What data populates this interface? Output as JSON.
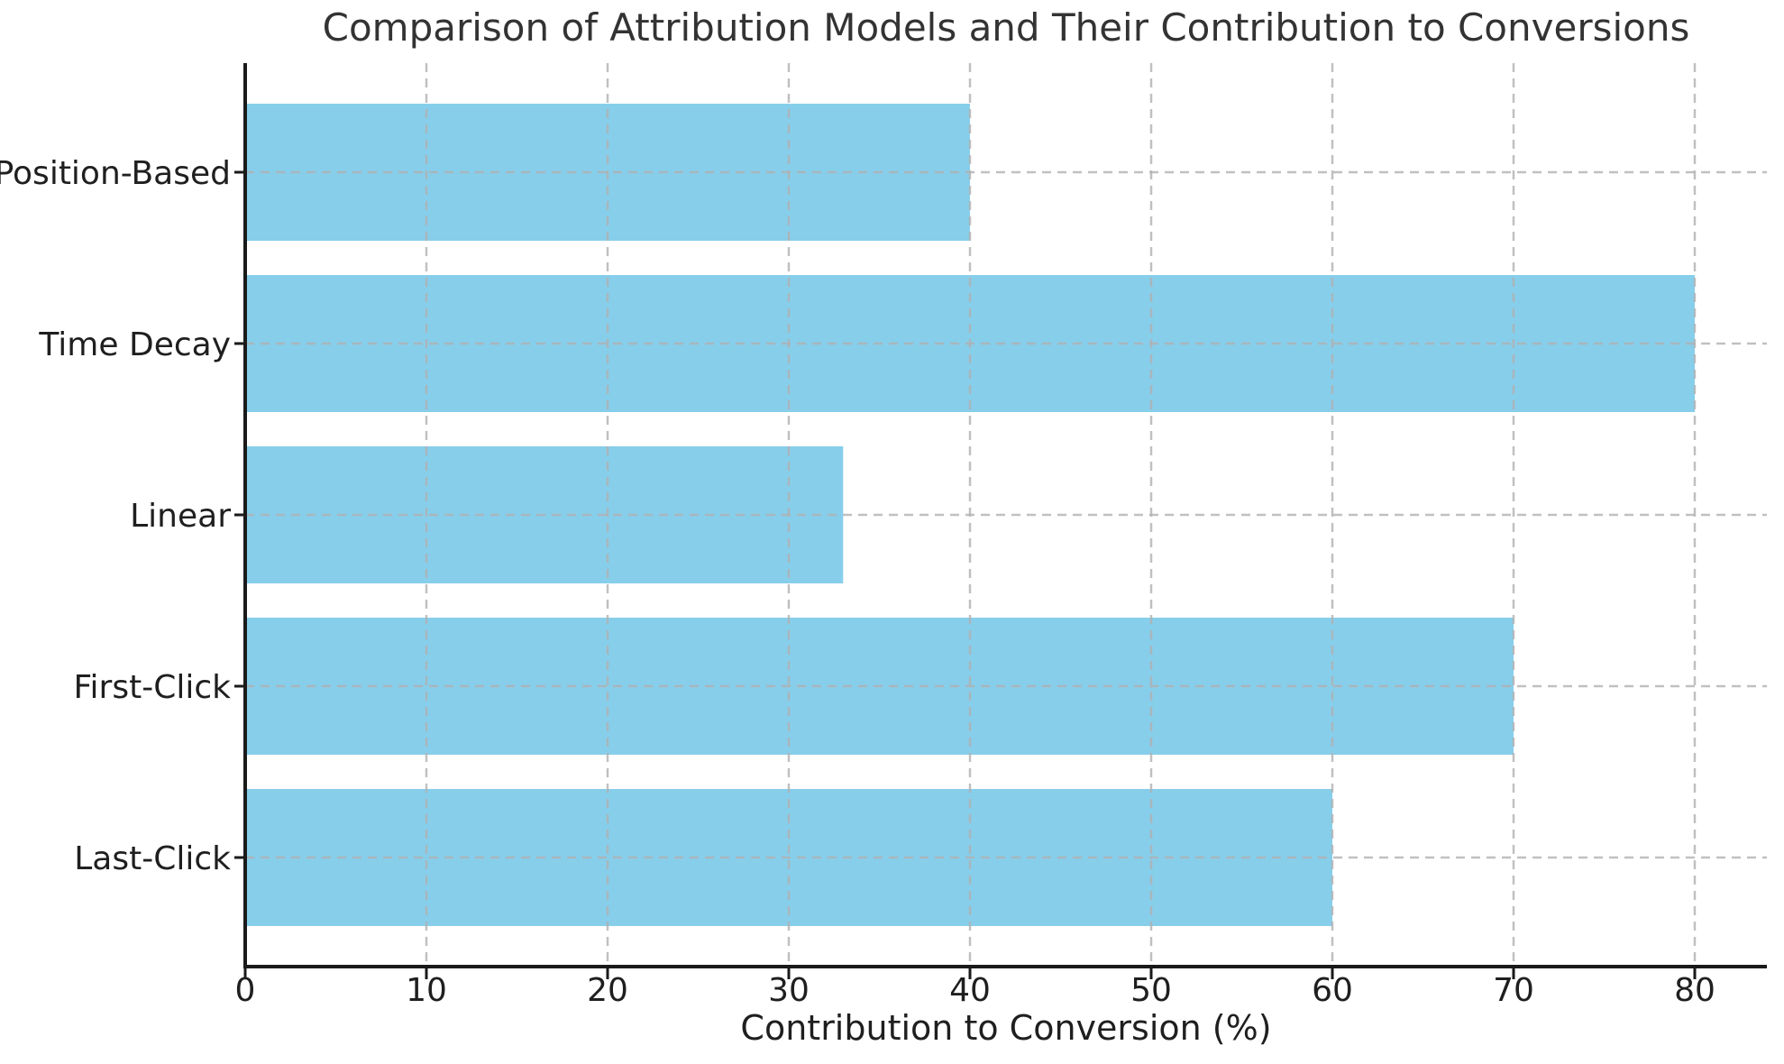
{
  "chart_data": {
    "type": "bar",
    "orientation": "horizontal",
    "title": "Comparison of Attribution Models and Their Contribution to Conversions",
    "xlabel": "Contribution to Conversion (%)",
    "ylabel": "",
    "categories": [
      "Position-Based",
      "Time Decay",
      "Linear",
      "First-Click",
      "Last-Click"
    ],
    "values": [
      40,
      80,
      33,
      70,
      60
    ],
    "xticks": [
      0,
      10,
      20,
      30,
      40,
      50,
      60,
      70,
      80
    ],
    "xlim": [
      0,
      84
    ],
    "grid": true,
    "grid_style": "dashed",
    "grid_color": "#b0b0b0",
    "bar_color": "#87CEEB",
    "spine_color": "#1a1a1a",
    "text_color": "#1f1f1f",
    "title_color": "#333333",
    "background_color": "#ffffff",
    "legend": null
  }
}
